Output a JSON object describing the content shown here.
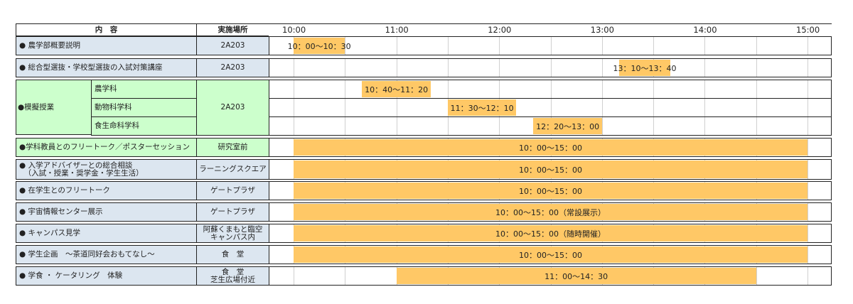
{
  "header": {
    "content": "内　容",
    "location": "実施場所",
    "times": [
      "10:00",
      "11:00",
      "12:00",
      "13:00",
      "14:00",
      "15:00"
    ]
  },
  "colors": {
    "blue_cell": "#dce6f0",
    "green_cell": "#ccffcc",
    "bar": "#ffc866"
  },
  "rows": [
    {
      "title": "● 農学部概要説明",
      "location": "2A203",
      "start": "10:00",
      "end": "10:30",
      "bar_label": "10：00～10：30",
      "color": "blue"
    },
    {
      "title": "● 総合型選抜・学校型選抜の入試対策講座",
      "location": "2A203",
      "start": "13:10",
      "end": "13:40",
      "bar_label": "13：10～13：40",
      "color": "blue"
    },
    {
      "title": "●模擬授業",
      "location": "2A203",
      "color": "green",
      "subrows": [
        {
          "label": "農学科",
          "start": "10:40",
          "end": "11:20",
          "bar_label": "10：40～11：20"
        },
        {
          "label": "動物科学科",
          "start": "11:30",
          "end": "12:10",
          "bar_label": "11：30～12：10"
        },
        {
          "label": "食生命科学科",
          "start": "12:20",
          "end": "13:00",
          "bar_label": "12：20～13：00"
        }
      ]
    },
    {
      "title": "●学科教員とのフリートーク／ポスターセッション",
      "location": "研究室前",
      "start": "10:00",
      "end": "15:00",
      "bar_label": "10：00～15：00",
      "color": "green"
    },
    {
      "title": "● 入学アドバイザーとの総合相談\n  （入試・授業・奨学金・学生生活）",
      "location": "ラーニングスクエア",
      "start": "10:00",
      "end": "15:00",
      "bar_label": "10：00～15：00",
      "color": "blue"
    },
    {
      "title": "● 在学生とのフリートーク",
      "location": "ゲートプラザ",
      "start": "10:00",
      "end": "15:00",
      "bar_label": "10：00～15：00",
      "color": "blue"
    },
    {
      "title": "● 宇宙情報センター展示",
      "location": "ゲートプラザ",
      "start": "10:00",
      "end": "15:00",
      "bar_label": "10：00～15：00（常設展示）",
      "color": "blue"
    },
    {
      "title": "● キャンパス見学",
      "location": "阿蘇くまもと臨空\nキャンパス内",
      "start": "10:00",
      "end": "15:00",
      "bar_label": "10：00～15：00（随時開催）",
      "color": "blue"
    },
    {
      "title": "● 学生企画　～茶道同好会おもてなし～",
      "location": "食　堂",
      "start": "10:00",
      "end": "15:00",
      "bar_label": "10：00～15：00",
      "color": "blue"
    },
    {
      "title": "● 学食 ・ ケータリング　体験",
      "location": "食　堂\n芝生広場付近",
      "start": "11:00",
      "end": "14:30",
      "bar_label": "11：00～14：30",
      "color": "blue"
    }
  ]
}
